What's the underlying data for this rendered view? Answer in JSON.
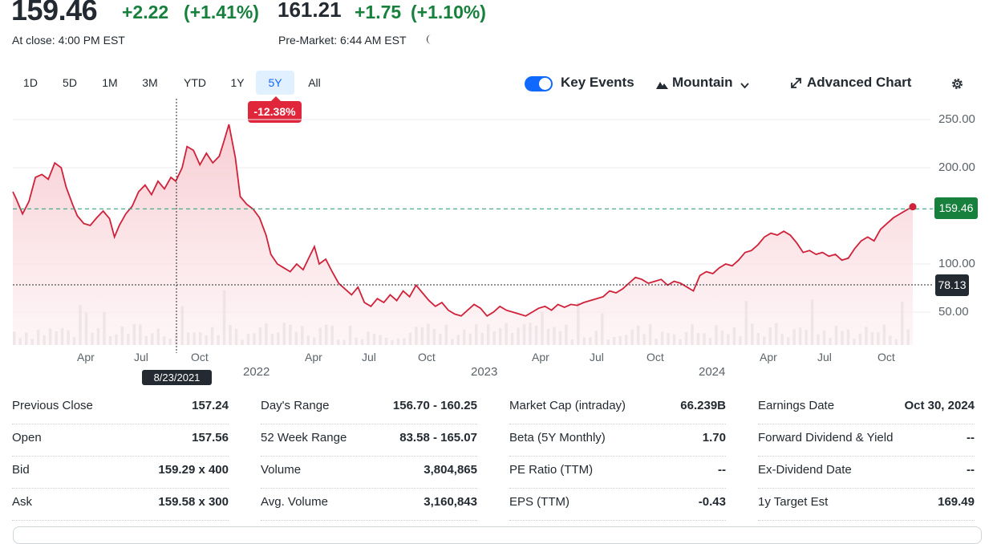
{
  "header": {
    "close_price": "159.46",
    "close_change": "+2.22",
    "close_change_pct": "(+1.41%)",
    "close_label": "At close: 4:00 PM EST",
    "pre_price": "161.21",
    "pre_change": "+1.75",
    "pre_change_pct": "(+1.10%)",
    "pre_label": "Pre-Market: 6:44 AM EST",
    "moon_icon": "moon-icon"
  },
  "ranges": [
    "1D",
    "5D",
    "1M",
    "3M",
    "YTD",
    "1Y",
    "5Y",
    "All"
  ],
  "active_range": "5Y",
  "period_change": "-12.38%",
  "toolbar": {
    "key_events_label": "Key Events",
    "key_events_on": true,
    "chart_type_label": "Mountain",
    "advanced_label": "Advanced Chart",
    "settings_icon": "gear-icon"
  },
  "chart": {
    "price_tag": "159.46",
    "cursor_value": "78.13",
    "cursor_date": "8/23/2021",
    "month_labels": [
      "Apr",
      "Jul",
      "Oct",
      "Apr",
      "Jul",
      "Oct",
      "Apr",
      "Jul",
      "Oct",
      "Apr",
      "Jul",
      "Oct"
    ],
    "year_labels": [
      "2022",
      "2023",
      "2024"
    ],
    "colors": {
      "line": "#d0213a",
      "fill": "#fbe3e6",
      "prev_close": "#3aa17e",
      "badge": "#e0263b"
    }
  },
  "chart_data": {
    "type": "area",
    "ylim": [
      20,
      260
    ],
    "yticks": [
      "250.00",
      "200.00",
      "100.00",
      "50.00"
    ],
    "ytick_values": [
      250,
      200,
      100,
      50
    ],
    "reference_line": 157.24,
    "cursor_line": 78.13,
    "points": [
      [
        0,
        175
      ],
      [
        0.2,
        168
      ],
      [
        0.6,
        152
      ],
      [
        1.0,
        165
      ],
      [
        1.4,
        190
      ],
      [
        1.8,
        193
      ],
      [
        2.2,
        188
      ],
      [
        2.6,
        205
      ],
      [
        3.0,
        200
      ],
      [
        3.3,
        180
      ],
      [
        3.7,
        162
      ],
      [
        4.0,
        150
      ],
      [
        4.4,
        142
      ],
      [
        4.8,
        140
      ],
      [
        5.2,
        148
      ],
      [
        5.6,
        155
      ],
      [
        6.0,
        147
      ],
      [
        6.3,
        128
      ],
      [
        6.6,
        140
      ],
      [
        7.0,
        152
      ],
      [
        7.4,
        160
      ],
      [
        7.8,
        175
      ],
      [
        8.2,
        182
      ],
      [
        8.6,
        172
      ],
      [
        9.0,
        186
      ],
      [
        9.4,
        178
      ],
      [
        9.8,
        190
      ],
      [
        10.1,
        186
      ],
      [
        10.5,
        200
      ],
      [
        10.8,
        222
      ],
      [
        11.2,
        218
      ],
      [
        11.6,
        203
      ],
      [
        12.0,
        215
      ],
      [
        12.4,
        205
      ],
      [
        12.8,
        212
      ],
      [
        13.1,
        228
      ],
      [
        13.4,
        245
      ],
      [
        13.8,
        210
      ],
      [
        14.1,
        170
      ],
      [
        14.5,
        162
      ],
      [
        14.9,
        157
      ],
      [
        15.3,
        148
      ],
      [
        15.7,
        130
      ],
      [
        16.0,
        110
      ],
      [
        16.4,
        100
      ],
      [
        16.8,
        96
      ],
      [
        17.2,
        92
      ],
      [
        17.6,
        100
      ],
      [
        18.0,
        94
      ],
      [
        18.4,
        108
      ],
      [
        18.7,
        118
      ],
      [
        19.0,
        100
      ],
      [
        19.4,
        105
      ],
      [
        19.8,
        92
      ],
      [
        20.2,
        80
      ],
      [
        20.6,
        74
      ],
      [
        21.0,
        68
      ],
      [
        21.4,
        76
      ],
      [
        21.8,
        60
      ],
      [
        22.2,
        56
      ],
      [
        22.6,
        64
      ],
      [
        23.0,
        60
      ],
      [
        23.4,
        68
      ],
      [
        23.8,
        62
      ],
      [
        24.2,
        72
      ],
      [
        24.6,
        66
      ],
      [
        25.0,
        78
      ],
      [
        25.4,
        70
      ],
      [
        25.8,
        62
      ],
      [
        26.2,
        56
      ],
      [
        26.6,
        60
      ],
      [
        27.0,
        52
      ],
      [
        27.4,
        48
      ],
      [
        27.8,
        46
      ],
      [
        28.2,
        52
      ],
      [
        28.6,
        58
      ],
      [
        29.0,
        54
      ],
      [
        29.4,
        46
      ],
      [
        29.8,
        50
      ],
      [
        30.2,
        56
      ],
      [
        30.6,
        52
      ],
      [
        31.0,
        50
      ],
      [
        31.4,
        48
      ],
      [
        31.8,
        46
      ],
      [
        32.2,
        50
      ],
      [
        32.6,
        54
      ],
      [
        33.0,
        56
      ],
      [
        33.4,
        52
      ],
      [
        33.8,
        58
      ],
      [
        34.2,
        55
      ],
      [
        34.6,
        58
      ],
      [
        35.0,
        57
      ],
      [
        35.4,
        60
      ],
      [
        35.8,
        62
      ],
      [
        36.2,
        64
      ],
      [
        36.6,
        66
      ],
      [
        37.0,
        72
      ],
      [
        37.4,
        70
      ],
      [
        37.8,
        74
      ],
      [
        38.2,
        80
      ],
      [
        38.6,
        86
      ],
      [
        39.0,
        84
      ],
      [
        39.4,
        80
      ],
      [
        39.8,
        82
      ],
      [
        40.2,
        84
      ],
      [
        40.6,
        78
      ],
      [
        41.0,
        82
      ],
      [
        41.4,
        80
      ],
      [
        41.8,
        76
      ],
      [
        42.2,
        72
      ],
      [
        42.6,
        88
      ],
      [
        43.0,
        92
      ],
      [
        43.4,
        90
      ],
      [
        43.8,
        96
      ],
      [
        44.2,
        100
      ],
      [
        44.6,
        98
      ],
      [
        45.0,
        104
      ],
      [
        45.4,
        112
      ],
      [
        45.8,
        114
      ],
      [
        46.2,
        120
      ],
      [
        46.6,
        128
      ],
      [
        47.0,
        132
      ],
      [
        47.4,
        130
      ],
      [
        47.8,
        134
      ],
      [
        48.2,
        130
      ],
      [
        48.6,
        122
      ],
      [
        49.0,
        112
      ],
      [
        49.4,
        114
      ],
      [
        49.8,
        110
      ],
      [
        50.2,
        112
      ],
      [
        50.6,
        108
      ],
      [
        51.0,
        110
      ],
      [
        51.4,
        104
      ],
      [
        51.8,
        106
      ],
      [
        52.2,
        116
      ],
      [
        52.6,
        124
      ],
      [
        53.0,
        128
      ],
      [
        53.4,
        124
      ],
      [
        53.8,
        136
      ],
      [
        54.2,
        142
      ],
      [
        54.6,
        148
      ],
      [
        55.0,
        152
      ],
      [
        55.4,
        156
      ],
      [
        55.8,
        159.46
      ]
    ],
    "volume_bars": 150
  },
  "stats": {
    "columns": [
      [
        [
          "Previous Close",
          "157.24"
        ],
        [
          "Open",
          "157.56"
        ],
        [
          "Bid",
          "159.29 x 400"
        ],
        [
          "Ask",
          "159.58 x 300"
        ]
      ],
      [
        [
          "Day's Range",
          "156.70 - 160.25"
        ],
        [
          "52 Week Range",
          "83.58 - 165.07"
        ],
        [
          "Volume",
          "3,804,865"
        ],
        [
          "Avg. Volume",
          "3,160,843"
        ]
      ],
      [
        [
          "Market Cap (intraday)",
          "66.239B"
        ],
        [
          "Beta (5Y Monthly)",
          "1.70"
        ],
        [
          "PE Ratio (TTM)",
          "--"
        ],
        [
          "EPS (TTM)",
          "-0.43"
        ]
      ],
      [
        [
          "Earnings Date",
          "Oct 30, 2024"
        ],
        [
          "Forward Dividend & Yield",
          "--"
        ],
        [
          "Ex-Dividend Date",
          "--"
        ],
        [
          "1y Target Est",
          "169.49"
        ]
      ]
    ]
  }
}
